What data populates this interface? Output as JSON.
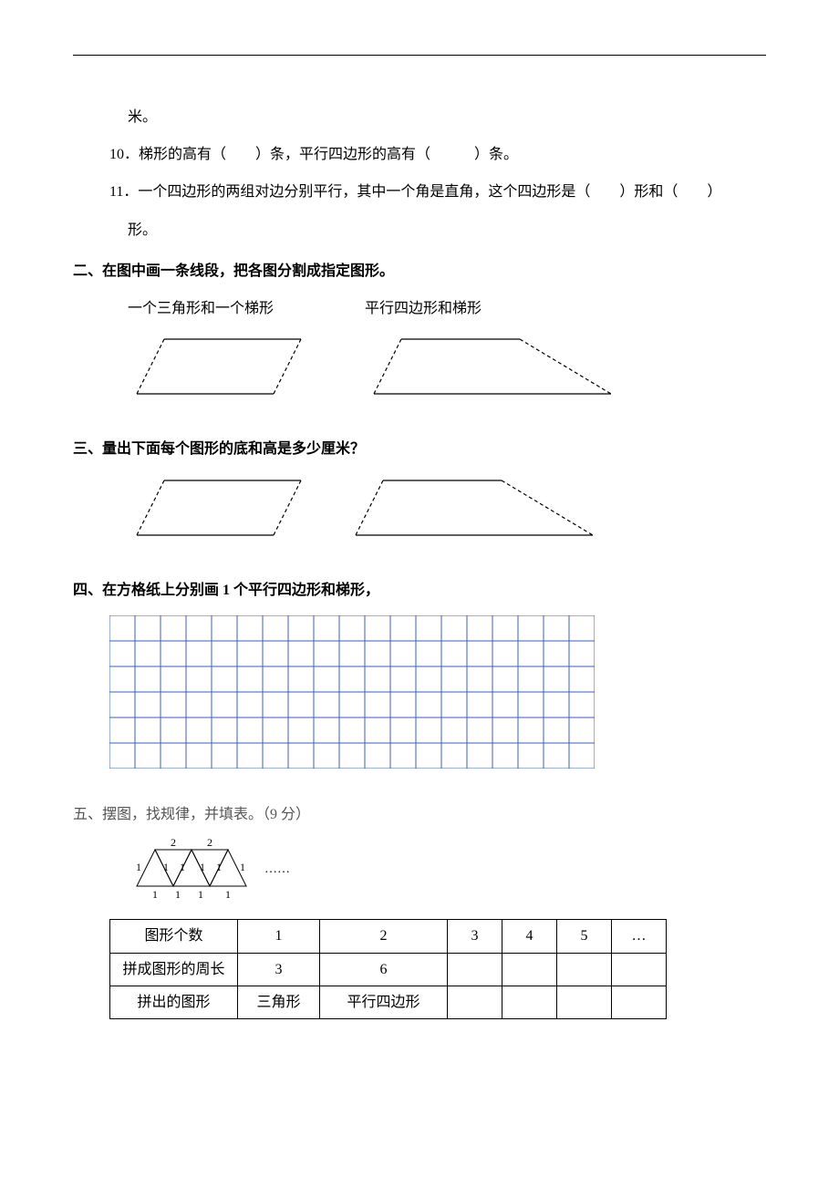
{
  "top": {
    "mi": "米。"
  },
  "q10": "10．梯形的高有（　　）条，平行四边形的高有（　　　）条。",
  "q11a": "11．一个四边形的两组对边分别平行，其中一个角是直角，这个四边形是（　　）形和（　　）",
  "q11b": "形。",
  "sec2": {
    "title": "二、在图中画一条线段，把各图分割成指定图形。",
    "label1": "一个三角形和一个梯形",
    "label2": "平行四边形和梯形"
  },
  "sec3": {
    "title": "三、量出下面每个图形的底和高是多少厘米？"
  },
  "sec4": {
    "title": "四、在方格纸上分别画 1 个平行四边形和梯形，",
    "grid": {
      "cols": 19,
      "rows": 6,
      "cell": 28,
      "stroke": "#3a5ec4"
    }
  },
  "sec5": {
    "title": "五、摆图，找规律，并填表。（9 分）",
    "dots": "……",
    "triangles": {
      "top_labels": [
        "2",
        "2"
      ],
      "side_labels": [
        "1",
        "1",
        "1",
        "1",
        "1",
        "1"
      ],
      "bottom_labels": [
        "1",
        "1",
        "1",
        "1"
      ]
    },
    "table": {
      "r1": [
        "图形个数",
        "1",
        "2",
        "3",
        "4",
        "5",
        "…"
      ],
      "r2": [
        "拼成图形的周长",
        "3",
        "6",
        "",
        "",
        "",
        ""
      ],
      "r3": [
        "拼出的图形",
        "三角形",
        "平行四边形",
        "",
        "",
        "",
        ""
      ]
    }
  },
  "shapes": {
    "parallelogram": {
      "fill": "none",
      "stroke": "#000",
      "dash": "4,3"
    },
    "trapezoid": {
      "fill": "none",
      "stroke": "#000",
      "dash": "4,3"
    }
  }
}
